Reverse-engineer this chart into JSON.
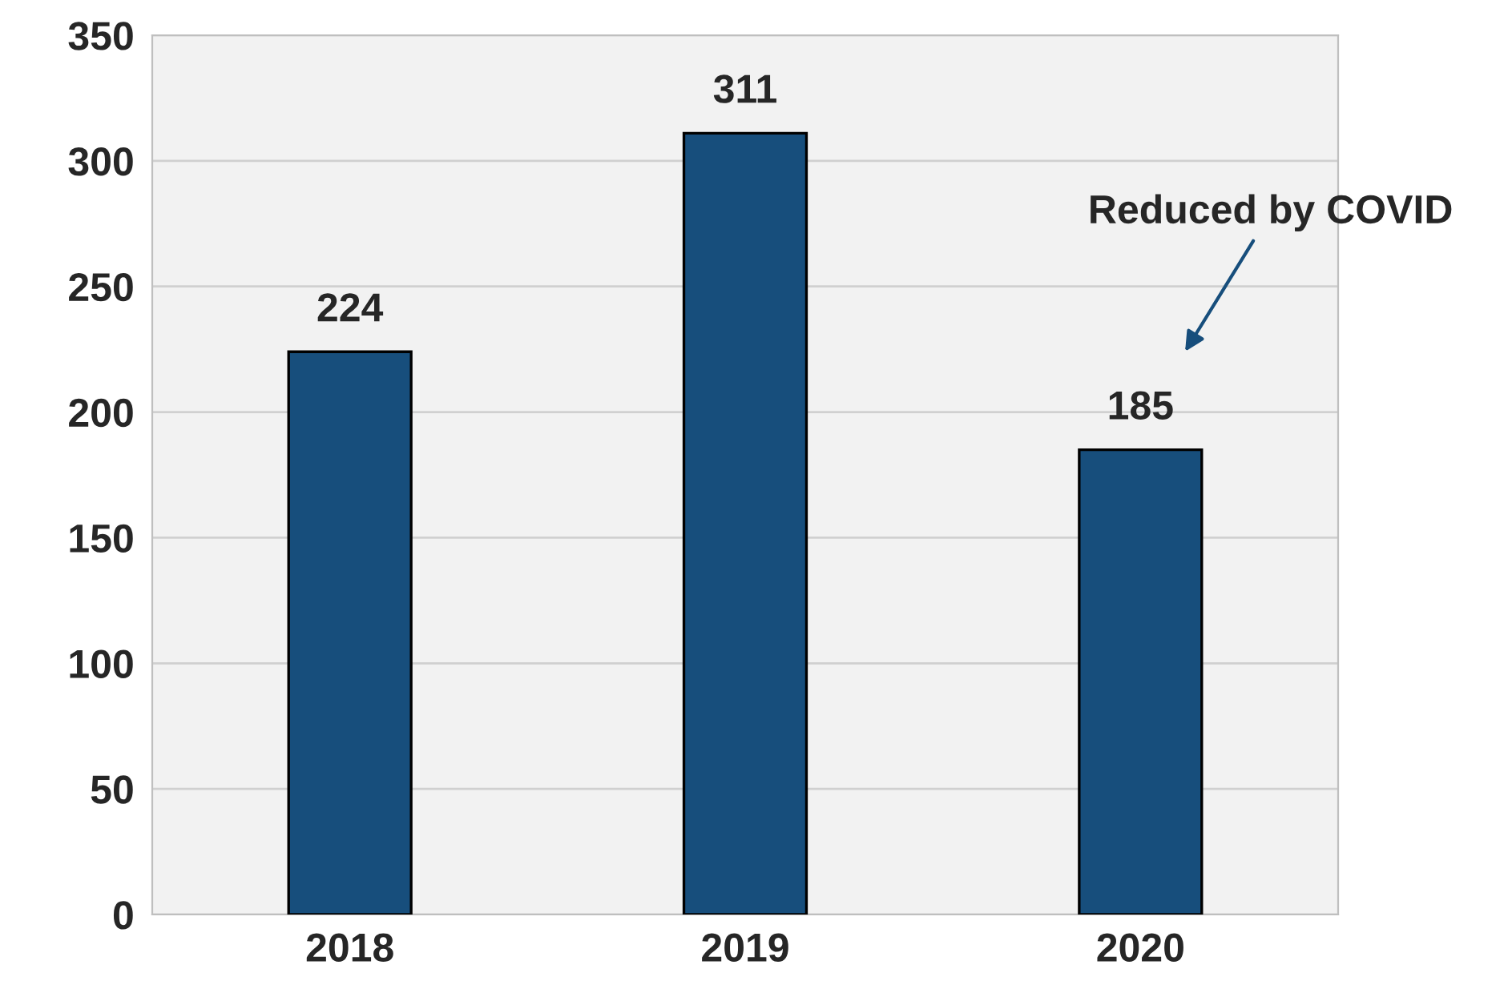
{
  "chart_data": {
    "type": "bar",
    "categories": [
      "2018",
      "2019",
      "2020"
    ],
    "values": [
      224,
      311,
      185
    ],
    "color": "#174e7c",
    "ylim": [
      0,
      350
    ],
    "yticks": [
      0,
      50,
      100,
      150,
      200,
      250,
      300,
      350
    ],
    "grid": "y",
    "data_labels": true,
    "annotations": [
      "Reduced by COVID"
    ]
  }
}
